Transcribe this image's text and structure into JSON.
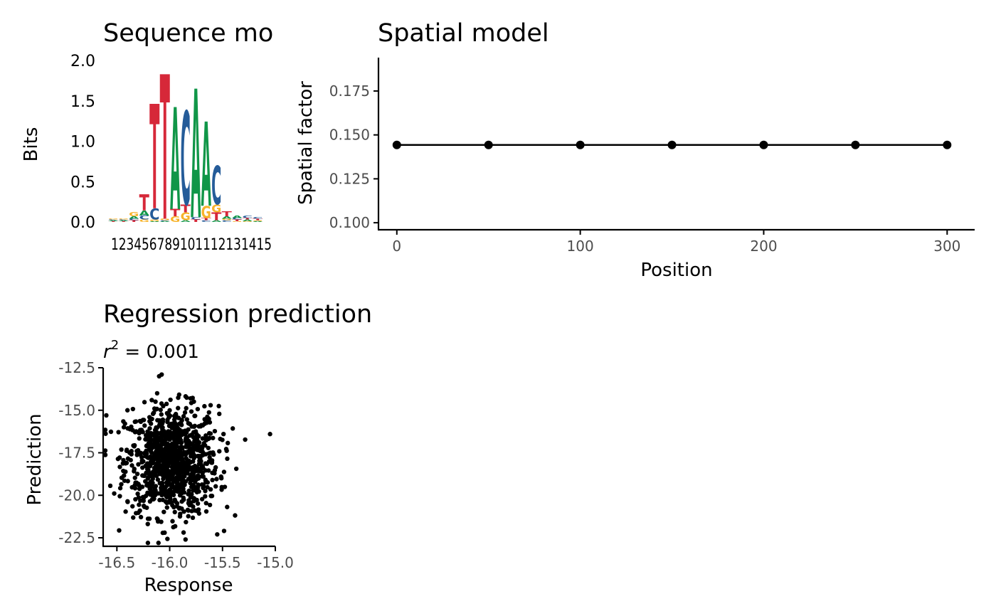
{
  "colors": {
    "A": "#109648",
    "C": "#255C99",
    "G": "#F7B32B",
    "T": "#D62839"
  },
  "chart_data": [
    {
      "type": "sequence-logo",
      "title": "Sequence mo",
      "ylabel": "Bits",
      "ylim": [
        0,
        2
      ],
      "yticks": [
        "0.0",
        "0.5",
        "1.0",
        "1.5",
        "2.0"
      ],
      "positions": [
        "1",
        "2",
        "3",
        "4",
        "5",
        "6",
        "7",
        "8",
        "9",
        "10",
        "11",
        "12",
        "13",
        "14",
        "15"
      ],
      "xtick_text": "123456789101112131415",
      "columns": [
        [
          {
            "l": "T",
            "h": 0.01
          },
          {
            "l": "A",
            "h": 0.01
          },
          {
            "l": "C",
            "h": 0.01
          },
          {
            "l": "G",
            "h": 0.01
          }
        ],
        [
          {
            "l": "T",
            "h": 0.01
          },
          {
            "l": "A",
            "h": 0.01
          },
          {
            "l": "C",
            "h": 0.01
          },
          {
            "l": "G",
            "h": 0.01
          }
        ],
        [
          {
            "l": "T",
            "h": 0.02
          },
          {
            "l": "C",
            "h": 0.02
          },
          {
            "l": "A",
            "h": 0.03
          },
          {
            "l": "G",
            "h": 0.05
          }
        ],
        [
          {
            "l": "G",
            "h": 0.03
          },
          {
            "l": "C",
            "h": 0.05
          },
          {
            "l": "A",
            "h": 0.06
          },
          {
            "l": "T",
            "h": 0.2
          }
        ],
        [
          {
            "l": "A",
            "h": 0.01
          },
          {
            "l": "G",
            "h": 0.02
          },
          {
            "l": "C",
            "h": 0.14
          },
          {
            "l": "T",
            "h": 1.3
          }
        ],
        [
          {
            "l": "A",
            "h": 0.01
          },
          {
            "l": "C",
            "h": 0.01
          },
          {
            "l": "G",
            "h": 0.02
          },
          {
            "l": "T",
            "h": 1.8
          }
        ],
        [
          {
            "l": "G",
            "h": 0.07
          },
          {
            "l": "T",
            "h": 0.09
          },
          {
            "l": "A",
            "h": 1.27
          }
        ],
        [
          {
            "l": "A",
            "h": 0.02
          },
          {
            "l": "G",
            "h": 0.1
          },
          {
            "l": "T",
            "h": 0.1
          },
          {
            "l": "C",
            "h": 1.16
          }
        ],
        [
          {
            "l": "T",
            "h": 0.03
          },
          {
            "l": "C",
            "h": 0.03
          },
          {
            "l": "A",
            "h": 1.6
          }
        ],
        [
          {
            "l": "C",
            "h": 0.02
          },
          {
            "l": "T",
            "h": 0.03
          },
          {
            "l": "G",
            "h": 0.15
          },
          {
            "l": "A",
            "h": 1.05
          }
        ],
        [
          {
            "l": "A",
            "h": 0.02
          },
          {
            "l": "T",
            "h": 0.1
          },
          {
            "l": "G",
            "h": 0.1
          },
          {
            "l": "C",
            "h": 0.48
          }
        ],
        [
          {
            "l": "C",
            "h": 0.02
          },
          {
            "l": "G",
            "h": 0.02
          },
          {
            "l": "A",
            "h": 0.03
          },
          {
            "l": "T",
            "h": 0.06
          }
        ],
        [
          {
            "l": "G",
            "h": 0.01
          },
          {
            "l": "T",
            "h": 0.02
          },
          {
            "l": "C",
            "h": 0.02
          },
          {
            "l": "A",
            "h": 0.03
          }
        ],
        [
          {
            "l": "G",
            "h": 0.01
          },
          {
            "l": "A",
            "h": 0.02
          },
          {
            "l": "T",
            "h": 0.02
          },
          {
            "l": "C",
            "h": 0.03
          }
        ],
        [
          {
            "l": "A",
            "h": 0.01
          },
          {
            "l": "G",
            "h": 0.01
          },
          {
            "l": "T",
            "h": 0.02
          },
          {
            "l": "C",
            "h": 0.02
          }
        ]
      ]
    },
    {
      "type": "line",
      "title": "Spatial model",
      "xlabel": "Position",
      "ylabel": "Spatial factor",
      "xlim": [
        -10,
        315
      ],
      "ylim": [
        0.096,
        0.194
      ],
      "xticks": [
        0,
        100,
        200,
        300
      ],
      "yticks": [
        0.1,
        0.125,
        0.15,
        0.175
      ],
      "ytick_labels": [
        "0.100",
        "0.125",
        "0.150",
        "0.175"
      ],
      "x": [
        0,
        50,
        100,
        150,
        200,
        250,
        300
      ],
      "y": [
        0.1443,
        0.1443,
        0.1443,
        0.1443,
        0.1443,
        0.1443,
        0.1443
      ]
    },
    {
      "type": "scatter",
      "title": "Regression prediction",
      "subtitle_base": "r",
      "subtitle_exp": "2",
      "subtitle_rest": " = 0.001",
      "xlabel": "Response",
      "ylabel": "Prediction",
      "xlim": [
        -16.63,
        -15.0
      ],
      "ylim": [
        -23.0,
        -12.5
      ],
      "xticks": [
        -16.5,
        -16.0,
        -15.5,
        -15.0
      ],
      "xtick_labels": [
        "-16.5",
        "-16.0",
        "-15.5",
        "-15.0"
      ],
      "yticks": [
        -22.5,
        -20.0,
        -17.5,
        -15.0,
        -12.5
      ],
      "ytick_labels": [
        "-22.5",
        "-20.0",
        "-17.5",
        "-15.0",
        "-12.5"
      ],
      "points_summary": {
        "n": 1000,
        "x_mean": -15.98,
        "x_sd": 0.22,
        "y_mean": -18.0,
        "y_sd": 1.6
      },
      "outliers": [
        [
          -16.6,
          -15.3
        ],
        [
          -15.05,
          -16.4
        ],
        [
          -15.85,
          -22.6
        ],
        [
          -16.4,
          -15.0
        ],
        [
          -15.55,
          -22.3
        ],
        [
          -16.1,
          -13.0
        ]
      ]
    }
  ]
}
